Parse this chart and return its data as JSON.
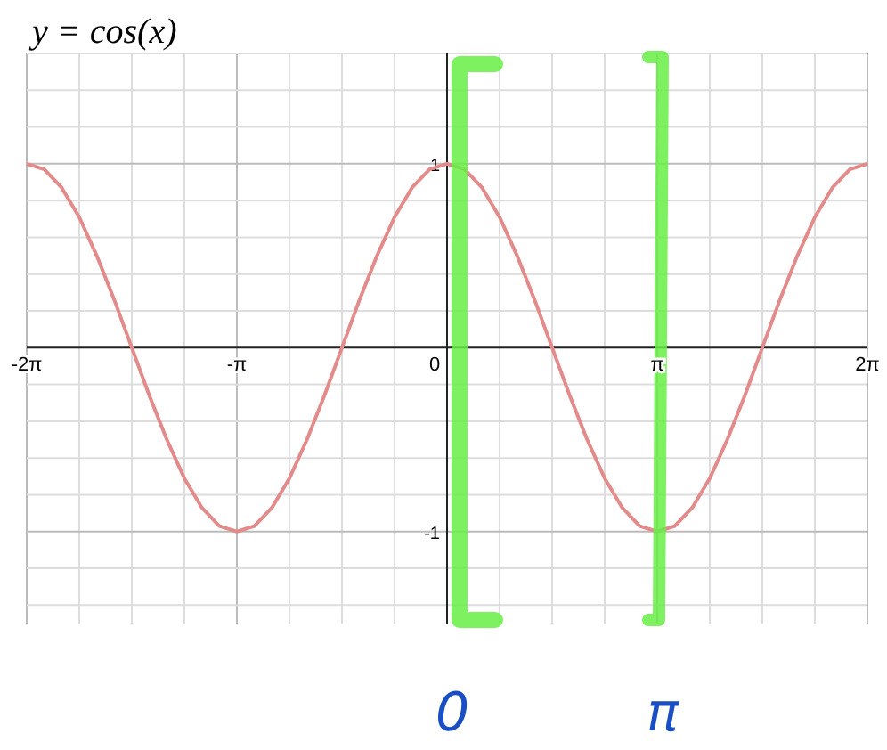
{
  "chart_data": {
    "type": "line",
    "title": "y = cos(x)",
    "x": [
      -6.283,
      -6.021,
      -5.76,
      -5.498,
      -5.236,
      -4.974,
      -4.712,
      -4.451,
      -4.189,
      -3.927,
      -3.665,
      -3.403,
      -3.142,
      -2.88,
      -2.618,
      -2.356,
      -2.094,
      -1.833,
      -1.571,
      -1.309,
      -1.047,
      -0.785,
      -0.524,
      -0.262,
      0,
      0.262,
      0.524,
      0.785,
      1.047,
      1.309,
      1.571,
      1.833,
      2.094,
      2.356,
      2.618,
      2.88,
      3.142,
      3.403,
      3.665,
      3.927,
      4.189,
      4.451,
      4.712,
      4.974,
      5.236,
      5.498,
      5.76,
      6.021,
      6.283
    ],
    "series": [
      {
        "color": "#e38b8b",
        "values": [
          1,
          0.97,
          0.87,
          0.71,
          0.5,
          0.26,
          0,
          -0.26,
          -0.5,
          -0.71,
          -0.87,
          -0.97,
          -1,
          -0.97,
          -0.87,
          -0.71,
          -0.5,
          -0.26,
          0,
          0.26,
          0.5,
          0.71,
          0.87,
          0.97,
          1,
          0.97,
          0.87,
          0.71,
          0.5,
          0.26,
          0,
          -0.26,
          -0.5,
          -0.71,
          -0.87,
          -0.97,
          -1,
          -0.97,
          -0.87,
          -0.71,
          -0.5,
          -0.26,
          0,
          0.26,
          0.5,
          0.71,
          0.87,
          0.97,
          1
        ]
      }
    ],
    "xlim": [
      -6.283,
      6.283
    ],
    "xticks": [
      {
        "value": -6.283,
        "label": "-2π"
      },
      {
        "value": -5.498,
        "label": null
      },
      {
        "value": -4.712,
        "label": null
      },
      {
        "value": -3.927,
        "label": null
      },
      {
        "value": -3.142,
        "label": "-π"
      },
      {
        "value": -2.356,
        "label": null
      },
      {
        "value": -1.571,
        "label": null
      },
      {
        "value": -0.785,
        "label": null
      },
      {
        "value": 0,
        "label": "0"
      },
      {
        "value": 0.785,
        "label": null
      },
      {
        "value": 1.571,
        "label": null
      },
      {
        "value": 2.356,
        "label": null
      },
      {
        "value": 3.142,
        "label": "π"
      },
      {
        "value": 3.927,
        "label": null
      },
      {
        "value": 4.712,
        "label": null
      },
      {
        "value": 5.498,
        "label": null
      },
      {
        "value": 6.283,
        "label": "2π"
      }
    ],
    "ylim": [
      -1.5,
      1.6
    ],
    "yticks": [
      {
        "value": -1.4,
        "label": null
      },
      {
        "value": -1.2,
        "label": null
      },
      {
        "value": -1,
        "label": "-1"
      },
      {
        "value": -0.8,
        "label": null
      },
      {
        "value": -0.6,
        "label": null
      },
      {
        "value": -0.4,
        "label": null
      },
      {
        "value": -0.2,
        "label": null
      },
      {
        "value": 0.2,
        "label": null
      },
      {
        "value": 0.4,
        "label": null
      },
      {
        "value": 0.6,
        "label": null
      },
      {
        "value": 0.8,
        "label": null
      },
      {
        "value": 1,
        "label": "1"
      },
      {
        "value": 1.2,
        "label": null
      },
      {
        "value": 1.4,
        "label": null
      },
      {
        "value": 1.6,
        "label": null
      }
    ],
    "grid": true,
    "marker": "none",
    "line_style": "solid",
    "annotations": [
      "0",
      "π"
    ]
  }
}
